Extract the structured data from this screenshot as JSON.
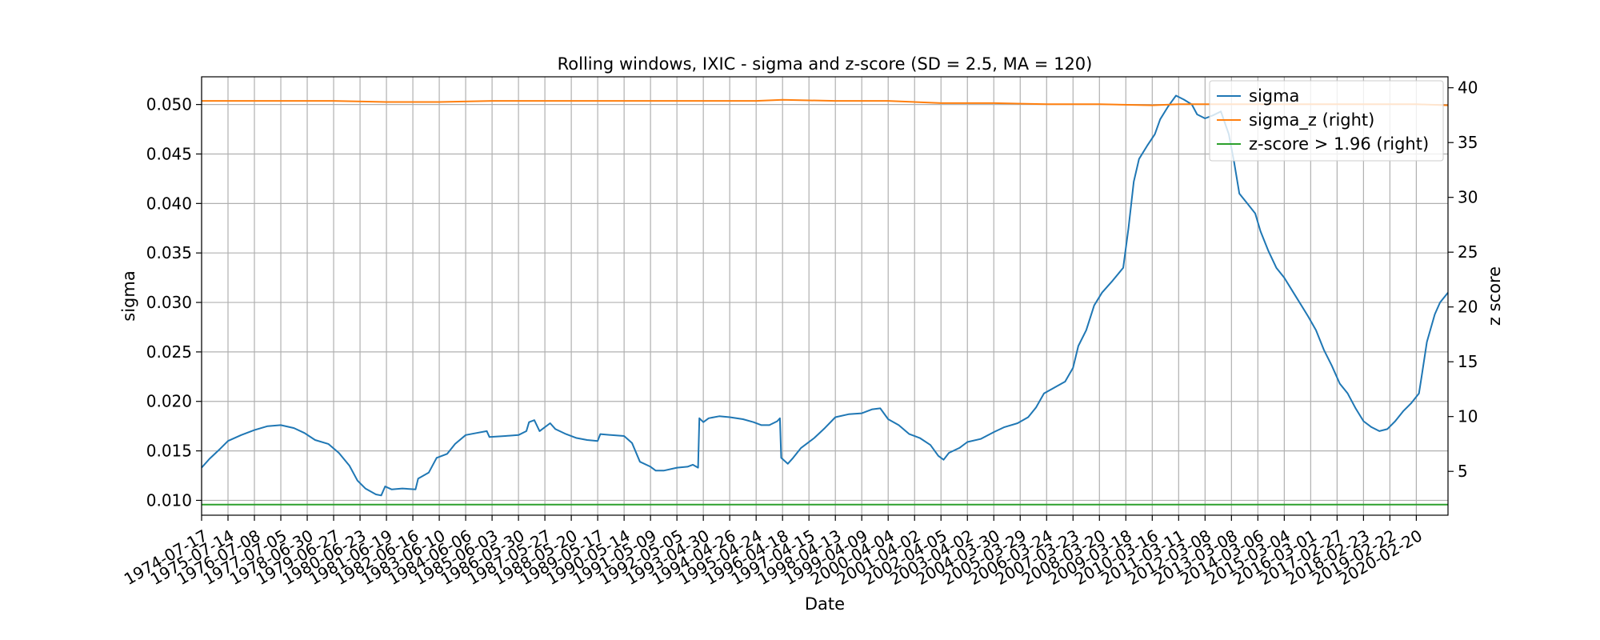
{
  "chart_data": {
    "type": "line",
    "title": "Rolling windows, IXIC - sigma and z-score (SD = 2.5, MA = 120)",
    "xlabel": "Date",
    "ylabel": "sigma",
    "y2label": "z score",
    "ylim": [
      0.0085,
      0.0528
    ],
    "y2lim": [
      1.0,
      41.0
    ],
    "yticks": [
      "0.010",
      "0.015",
      "0.020",
      "0.025",
      "0.030",
      "0.035",
      "0.040",
      "0.045",
      "0.050"
    ],
    "y2ticks": [
      "5",
      "10",
      "15",
      "20",
      "25",
      "30",
      "35",
      "40"
    ],
    "grid": true,
    "legend_position": "top-right",
    "x_categories": [
      "1974-07-17",
      "1975-07-14",
      "1976-07-08",
      "1977-07-05",
      "1978-06-30",
      "1979-06-27",
      "1980-06-23",
      "1981-06-19",
      "1982-06-16",
      "1983-06-10",
      "1984-06-06",
      "1985-06-03",
      "1986-05-30",
      "1987-05-27",
      "1988-05-20",
      "1989-05-17",
      "1990-05-14",
      "1991-05-09",
      "1992-05-05",
      "1993-04-30",
      "1994-04-26",
      "1995-04-24",
      "1996-04-18",
      "1997-04-15",
      "1998-04-13",
      "1999-04-09",
      "2000-04-04",
      "2001-04-02",
      "2002-04-05",
      "2003-04-02",
      "2004-03-30",
      "2005-03-29",
      "2006-03-24",
      "2007-03-23",
      "2008-03-20",
      "2009-03-18",
      "2010-03-16",
      "2011-03-11",
      "2012-03-08",
      "2013-03-08",
      "2014-03-06",
      "2015-03-04",
      "2016-03-01",
      "2017-02-27",
      "2018-02-23",
      "2019-02-22",
      "2020-02-20"
    ],
    "x_range": [
      0,
      47.2
    ],
    "series": [
      {
        "name": "sigma",
        "axis": "left",
        "color": "#1f77b4",
        "points": [
          [
            0,
            0.0133
          ],
          [
            0.3,
            0.0142
          ],
          [
            0.7,
            0.0152
          ],
          [
            1.0,
            0.016
          ],
          [
            1.5,
            0.0166
          ],
          [
            2.0,
            0.0171
          ],
          [
            2.5,
            0.0175
          ],
          [
            3.0,
            0.0176
          ],
          [
            3.5,
            0.0173
          ],
          [
            3.9,
            0.0168
          ],
          [
            4.3,
            0.0161
          ],
          [
            4.8,
            0.0157
          ],
          [
            5.2,
            0.0148
          ],
          [
            5.6,
            0.0135
          ],
          [
            5.9,
            0.012
          ],
          [
            6.2,
            0.0112
          ],
          [
            6.6,
            0.0106
          ],
          [
            6.8,
            0.0105
          ],
          [
            6.95,
            0.0114
          ],
          [
            7.2,
            0.0111
          ],
          [
            7.6,
            0.0112
          ],
          [
            8.1,
            0.0111
          ],
          [
            8.2,
            0.0122
          ],
          [
            8.6,
            0.0128
          ],
          [
            8.9,
            0.0143
          ],
          [
            9.3,
            0.0147
          ],
          [
            9.6,
            0.0157
          ],
          [
            10.0,
            0.0166
          ],
          [
            10.4,
            0.0168
          ],
          [
            10.8,
            0.017
          ],
          [
            10.9,
            0.0164
          ],
          [
            11.5,
            0.0165
          ],
          [
            12.0,
            0.0166
          ],
          [
            12.3,
            0.017
          ],
          [
            12.4,
            0.0179
          ],
          [
            12.6,
            0.0181
          ],
          [
            12.8,
            0.017
          ],
          [
            13.0,
            0.0174
          ],
          [
            13.2,
            0.0178
          ],
          [
            13.4,
            0.0172
          ],
          [
            13.8,
            0.0167
          ],
          [
            14.2,
            0.0163
          ],
          [
            14.6,
            0.0161
          ],
          [
            15.0,
            0.016
          ],
          [
            15.1,
            0.0167
          ],
          [
            15.5,
            0.0166
          ],
          [
            16.0,
            0.0165
          ],
          [
            16.3,
            0.0158
          ],
          [
            16.6,
            0.0139
          ],
          [
            17.0,
            0.0134
          ],
          [
            17.2,
            0.013
          ],
          [
            17.5,
            0.013
          ],
          [
            18.0,
            0.0133
          ],
          [
            18.4,
            0.0134
          ],
          [
            18.6,
            0.0136
          ],
          [
            18.8,
            0.0133
          ],
          [
            18.85,
            0.0183
          ],
          [
            19.0,
            0.0179
          ],
          [
            19.2,
            0.0183
          ],
          [
            19.6,
            0.0185
          ],
          [
            20.0,
            0.0184
          ],
          [
            20.5,
            0.0182
          ],
          [
            20.9,
            0.0179
          ],
          [
            21.2,
            0.0176
          ],
          [
            21.5,
            0.0176
          ],
          [
            21.8,
            0.018
          ],
          [
            21.9,
            0.0183
          ],
          [
            21.95,
            0.0143
          ],
          [
            22.2,
            0.0137
          ],
          [
            22.4,
            0.0143
          ],
          [
            22.7,
            0.0153
          ],
          [
            23.2,
            0.0163
          ],
          [
            23.6,
            0.0173
          ],
          [
            24.0,
            0.0184
          ],
          [
            24.5,
            0.0187
          ],
          [
            25.0,
            0.0188
          ],
          [
            25.4,
            0.0192
          ],
          [
            25.7,
            0.0193
          ],
          [
            26.0,
            0.0182
          ],
          [
            26.4,
            0.0176
          ],
          [
            26.8,
            0.0167
          ],
          [
            27.2,
            0.0163
          ],
          [
            27.6,
            0.0156
          ],
          [
            27.9,
            0.0145
          ],
          [
            28.1,
            0.0141
          ],
          [
            28.3,
            0.0148
          ],
          [
            28.7,
            0.0153
          ],
          [
            29.0,
            0.0159
          ],
          [
            29.5,
            0.0162
          ],
          [
            30.0,
            0.0169
          ],
          [
            30.4,
            0.0174
          ],
          [
            30.9,
            0.0178
          ],
          [
            31.3,
            0.0184
          ],
          [
            31.6,
            0.0194
          ],
          [
            31.9,
            0.0208
          ],
          [
            32.3,
            0.0214
          ],
          [
            32.7,
            0.022
          ],
          [
            33.0,
            0.0234
          ],
          [
            33.2,
            0.0256
          ],
          [
            33.5,
            0.0272
          ],
          [
            33.8,
            0.0297
          ],
          [
            34.1,
            0.031
          ],
          [
            34.5,
            0.0322
          ],
          [
            34.9,
            0.0335
          ],
          [
            35.1,
            0.0375
          ],
          [
            35.3,
            0.0422
          ],
          [
            35.5,
            0.0445
          ],
          [
            35.8,
            0.0458
          ],
          [
            36.1,
            0.047
          ],
          [
            36.3,
            0.0485
          ],
          [
            36.6,
            0.0498
          ],
          [
            36.9,
            0.0509
          ],
          [
            37.2,
            0.0505
          ],
          [
            37.5,
            0.05
          ],
          [
            37.7,
            0.049
          ],
          [
            38.0,
            0.0486
          ],
          [
            38.3,
            0.0489
          ],
          [
            38.6,
            0.0493
          ],
          [
            38.9,
            0.047
          ],
          [
            39.1,
            0.0442
          ],
          [
            39.3,
            0.041
          ],
          [
            39.6,
            0.04
          ],
          [
            39.9,
            0.039
          ],
          [
            40.1,
            0.0372
          ],
          [
            40.4,
            0.0352
          ],
          [
            40.7,
            0.0335
          ],
          [
            41.0,
            0.0325
          ],
          [
            41.3,
            0.0312
          ],
          [
            41.6,
            0.0299
          ],
          [
            41.9,
            0.0286
          ],
          [
            42.2,
            0.0272
          ],
          [
            42.5,
            0.0252
          ],
          [
            42.8,
            0.0236
          ],
          [
            43.1,
            0.0218
          ],
          [
            43.4,
            0.0208
          ],
          [
            43.7,
            0.0193
          ],
          [
            44.0,
            0.018
          ],
          [
            44.3,
            0.0174
          ],
          [
            44.6,
            0.017
          ],
          [
            44.9,
            0.0172
          ],
          [
            45.2,
            0.018
          ],
          [
            45.5,
            0.019
          ],
          [
            45.8,
            0.0198
          ],
          [
            46.1,
            0.0208
          ],
          [
            46.2,
            0.0225
          ],
          [
            46.4,
            0.026
          ],
          [
            46.7,
            0.0288
          ],
          [
            46.9,
            0.03
          ],
          [
            47.2,
            0.031
          ]
        ]
      },
      {
        "name": "sigma_z (right)",
        "axis": "right",
        "color": "#ff7f0e",
        "points": [
          [
            0,
            38.8
          ],
          [
            3,
            38.8
          ],
          [
            5,
            38.8
          ],
          [
            7,
            38.7
          ],
          [
            9,
            38.7
          ],
          [
            11,
            38.8
          ],
          [
            13,
            38.8
          ],
          [
            15,
            38.8
          ],
          [
            17,
            38.8
          ],
          [
            19,
            38.8
          ],
          [
            20,
            38.8
          ],
          [
            21,
            38.8
          ],
          [
            22,
            38.9
          ],
          [
            24,
            38.8
          ],
          [
            26,
            38.8
          ],
          [
            28,
            38.6
          ],
          [
            30,
            38.6
          ],
          [
            32,
            38.5
          ],
          [
            34,
            38.5
          ],
          [
            36,
            38.4
          ],
          [
            37,
            38.5
          ],
          [
            38,
            38.5
          ],
          [
            40,
            38.5
          ],
          [
            42,
            38.5
          ],
          [
            44,
            38.5
          ],
          [
            45,
            38.5
          ],
          [
            46,
            38.5
          ],
          [
            47.2,
            38.4
          ]
        ]
      },
      {
        "name": "z-score > 1.96 (right)",
        "axis": "right",
        "color": "#2ca02c",
        "points": [
          [
            0,
            1.96
          ],
          [
            47.2,
            1.96
          ]
        ]
      }
    ]
  }
}
